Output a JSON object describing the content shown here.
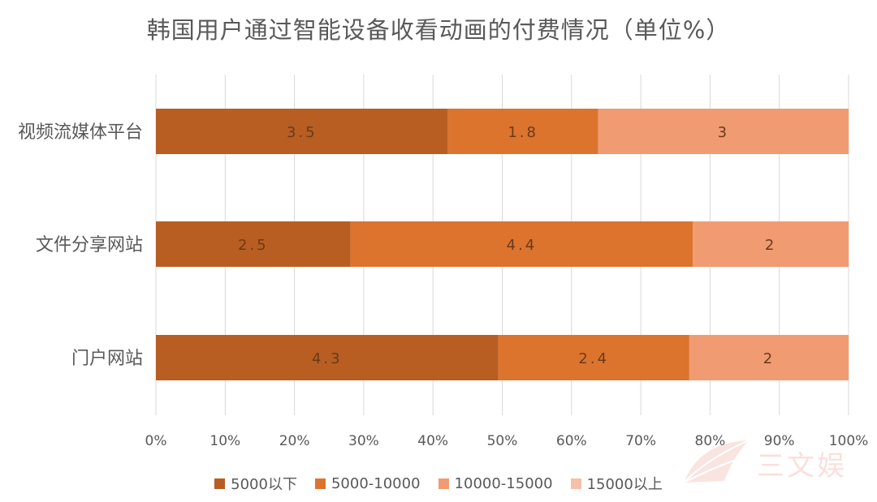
{
  "chart_data": {
    "type": "bar",
    "orientation": "horizontal",
    "stacked": "percent",
    "title": "韩国用户通过智能设备收看动画的付费情况（单位%）",
    "categories": [
      "视频流媒体平台",
      "文件分享网站",
      "门户网站"
    ],
    "series": [
      {
        "name": "5000以下",
        "values": [
          3.5,
          2.5,
          4.3
        ],
        "labels": [
          "3.5",
          "2.5",
          "4.3"
        ],
        "color": "#b85e22"
      },
      {
        "name": "5000-10000",
        "values": [
          1.8,
          4.4,
          2.4
        ],
        "labels": [
          "1.8",
          "4.4",
          "2.4"
        ],
        "color": "#dc742e"
      },
      {
        "name": "10000-15000",
        "values": [
          3,
          2,
          2
        ],
        "labels": [
          "3",
          "2",
          "2"
        ],
        "color": "#f09b72"
      },
      {
        "name": "15000以上",
        "values": [
          0,
          0,
          0
        ],
        "labels": [],
        "color": "#f6bfaa"
      }
    ],
    "x_ticks": [
      "0%",
      "10%",
      "20%",
      "30%",
      "40%",
      "50%",
      "60%",
      "70%",
      "80%",
      "90%",
      "100%"
    ],
    "xlim": [
      0,
      100
    ],
    "grid": "vertical",
    "legend_position": "bottom"
  },
  "watermark": {
    "text": "三文娱"
  }
}
